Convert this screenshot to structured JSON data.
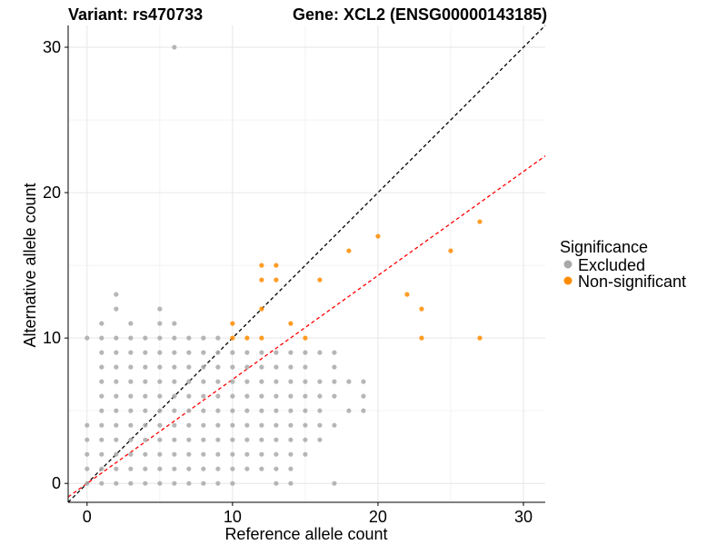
{
  "title_left": "Variant: rs470733",
  "title_right": "Gene: XCL2 (ENSG00000143185)",
  "legend": {
    "title": "Significance",
    "items": [
      {
        "label": "Excluded",
        "color": "#a9a9a9"
      },
      {
        "label": "Non-significant",
        "color": "#ff8c00"
      }
    ]
  },
  "chart_data": {
    "type": "scatter",
    "xlabel": "Reference allele count",
    "ylabel": "Alternative allele count",
    "xlim": [
      -1.3,
      31.5
    ],
    "ylim": [
      -1.3,
      31.5
    ],
    "xticks": [
      0,
      10,
      20,
      30
    ],
    "yticks": [
      0,
      10,
      20,
      30
    ],
    "grid": true,
    "reference_lines": [
      {
        "slope": 1.0,
        "intercept": 0,
        "color": "#000000",
        "style": "dashed"
      },
      {
        "slope": 0.715,
        "intercept": 0,
        "color": "#ff0000",
        "style": "dashed"
      }
    ],
    "series": [
      {
        "name": "Excluded",
        "color": "#a9a9a9",
        "points": [
          [
            6,
            30
          ],
          [
            2,
            13
          ],
          [
            2,
            12
          ],
          [
            5,
            12
          ],
          [
            5,
            11
          ],
          [
            1,
            11
          ],
          [
            3,
            11
          ],
          [
            6,
            11
          ],
          [
            0,
            10
          ],
          [
            1,
            10
          ],
          [
            2,
            10
          ],
          [
            3,
            10
          ],
          [
            4,
            10
          ],
          [
            5,
            10
          ],
          [
            6,
            10
          ],
          [
            7,
            10
          ],
          [
            8,
            10
          ],
          [
            9,
            10
          ],
          [
            0,
            4
          ],
          [
            0,
            3
          ],
          [
            0,
            2
          ],
          [
            0,
            1
          ],
          [
            0,
            0
          ],
          [
            1,
            9
          ],
          [
            1,
            8
          ],
          [
            1,
            7
          ],
          [
            1,
            6
          ],
          [
            1,
            5
          ],
          [
            1,
            4
          ],
          [
            1,
            3
          ],
          [
            1,
            2
          ],
          [
            1,
            1
          ],
          [
            1,
            0
          ],
          [
            2,
            9
          ],
          [
            2,
            8
          ],
          [
            2,
            7
          ],
          [
            2,
            6
          ],
          [
            2,
            5
          ],
          [
            2,
            4
          ],
          [
            2,
            3
          ],
          [
            2,
            2
          ],
          [
            2,
            1
          ],
          [
            2,
            0
          ],
          [
            3,
            9
          ],
          [
            3,
            8
          ],
          [
            3,
            7
          ],
          [
            3,
            6
          ],
          [
            3,
            5
          ],
          [
            3,
            4
          ],
          [
            3,
            3
          ],
          [
            3,
            2
          ],
          [
            3,
            1
          ],
          [
            3,
            0
          ],
          [
            4,
            9
          ],
          [
            4,
            8
          ],
          [
            4,
            7
          ],
          [
            4,
            6
          ],
          [
            4,
            5
          ],
          [
            4,
            4
          ],
          [
            4,
            3
          ],
          [
            4,
            2
          ],
          [
            4,
            1
          ],
          [
            4,
            0
          ],
          [
            5,
            9
          ],
          [
            5,
            8
          ],
          [
            5,
            7
          ],
          [
            5,
            6
          ],
          [
            5,
            5
          ],
          [
            5,
            4
          ],
          [
            5,
            3
          ],
          [
            5,
            2
          ],
          [
            5,
            1
          ],
          [
            5,
            0
          ],
          [
            6,
            9
          ],
          [
            6,
            8
          ],
          [
            6,
            7
          ],
          [
            6,
            6
          ],
          [
            6,
            5
          ],
          [
            6,
            4
          ],
          [
            6,
            3
          ],
          [
            6,
            2
          ],
          [
            6,
            1
          ],
          [
            6,
            0
          ],
          [
            7,
            9
          ],
          [
            7,
            8
          ],
          [
            7,
            7
          ],
          [
            7,
            6
          ],
          [
            7,
            5
          ],
          [
            7,
            4
          ],
          [
            7,
            3
          ],
          [
            7,
            2
          ],
          [
            7,
            1
          ],
          [
            7,
            0
          ],
          [
            8,
            9
          ],
          [
            8,
            8
          ],
          [
            8,
            7
          ],
          [
            8,
            6
          ],
          [
            8,
            5
          ],
          [
            8,
            4
          ],
          [
            8,
            3
          ],
          [
            8,
            2
          ],
          [
            8,
            1
          ],
          [
            8,
            0
          ],
          [
            9,
            9
          ],
          [
            9,
            8
          ],
          [
            9,
            7
          ],
          [
            9,
            6
          ],
          [
            9,
            5
          ],
          [
            9,
            4
          ],
          [
            9,
            3
          ],
          [
            9,
            2
          ],
          [
            9,
            1
          ],
          [
            9,
            0
          ],
          [
            10,
            9
          ],
          [
            10,
            8
          ],
          [
            10,
            7
          ],
          [
            10,
            6
          ],
          [
            10,
            5
          ],
          [
            10,
            4
          ],
          [
            10,
            3
          ],
          [
            10,
            2
          ],
          [
            10,
            1
          ],
          [
            10,
            0
          ],
          [
            11,
            9
          ],
          [
            11,
            8
          ],
          [
            11,
            7
          ],
          [
            11,
            6
          ],
          [
            11,
            5
          ],
          [
            11,
            4
          ],
          [
            11,
            3
          ],
          [
            11,
            2
          ],
          [
            11,
            1
          ],
          [
            12,
            9
          ],
          [
            12,
            8
          ],
          [
            12,
            7
          ],
          [
            12,
            6
          ],
          [
            12,
            5
          ],
          [
            12,
            4
          ],
          [
            12,
            3
          ],
          [
            12,
            2
          ],
          [
            12,
            1
          ],
          [
            13,
            9
          ],
          [
            13,
            8
          ],
          [
            13,
            7
          ],
          [
            13,
            6
          ],
          [
            13,
            5
          ],
          [
            13,
            4
          ],
          [
            13,
            3
          ],
          [
            13,
            2
          ],
          [
            13,
            1
          ],
          [
            13,
            0
          ],
          [
            14,
            9
          ],
          [
            14,
            8
          ],
          [
            14,
            7
          ],
          [
            14,
            6
          ],
          [
            14,
            5
          ],
          [
            14,
            4
          ],
          [
            14,
            3
          ],
          [
            14,
            2
          ],
          [
            14,
            1
          ],
          [
            14,
            0
          ],
          [
            15,
            9
          ],
          [
            15,
            8
          ],
          [
            15,
            7
          ],
          [
            15,
            6
          ],
          [
            15,
            5
          ],
          [
            15,
            4
          ],
          [
            15,
            3
          ],
          [
            15,
            2
          ],
          [
            16,
            9
          ],
          [
            16,
            7
          ],
          [
            16,
            6
          ],
          [
            16,
            5
          ],
          [
            16,
            4
          ],
          [
            16,
            3
          ],
          [
            17,
            9
          ],
          [
            17,
            8
          ],
          [
            17,
            7
          ],
          [
            17,
            6
          ],
          [
            17,
            4
          ],
          [
            17,
            0
          ],
          [
            18,
            7
          ],
          [
            18,
            5
          ],
          [
            19,
            7
          ],
          [
            19,
            6
          ],
          [
            19,
            5
          ]
        ]
      },
      {
        "name": "Non-significant",
        "color": "#ff8c00",
        "points": [
          [
            10,
            11
          ],
          [
            10,
            10
          ],
          [
            11,
            10
          ],
          [
            12,
            15
          ],
          [
            12,
            14
          ],
          [
            12,
            12
          ],
          [
            12,
            10
          ],
          [
            13,
            15
          ],
          [
            13,
            14
          ],
          [
            14,
            11
          ],
          [
            15,
            10
          ],
          [
            16,
            14
          ],
          [
            18,
            16
          ],
          [
            20,
            17
          ],
          [
            22,
            13
          ],
          [
            23,
            12
          ],
          [
            23,
            10
          ],
          [
            25,
            16
          ],
          [
            27,
            18
          ],
          [
            27,
            10
          ]
        ]
      }
    ]
  }
}
